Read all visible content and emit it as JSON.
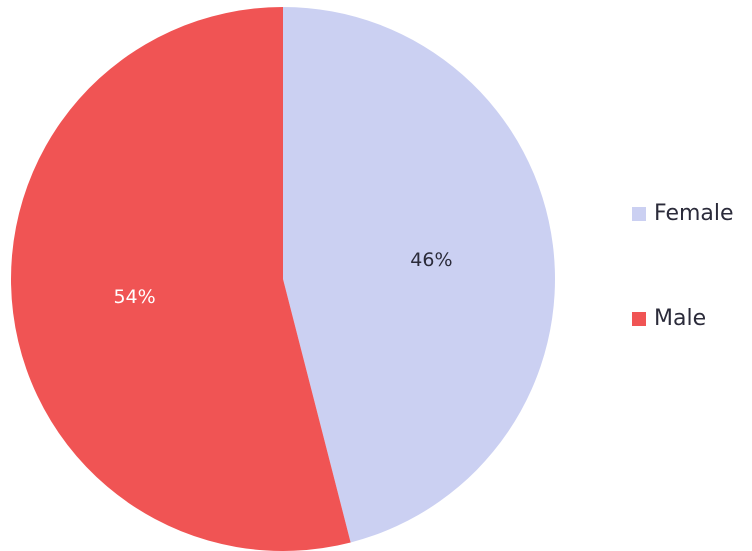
{
  "chart_data": {
    "type": "pie",
    "categories": [
      "Female",
      "Male"
    ],
    "values": [
      46,
      54
    ],
    "value_labels": [
      "46%",
      "54%"
    ],
    "colors": [
      "#cbd0f2",
      "#f05454"
    ],
    "legend": "right"
  }
}
